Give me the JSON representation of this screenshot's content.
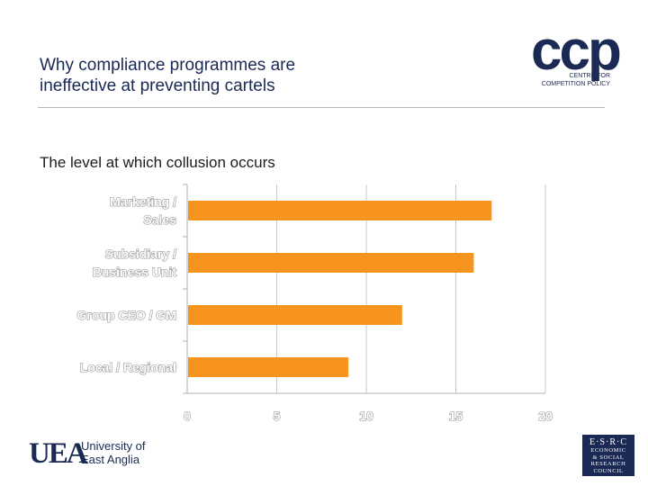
{
  "slide": {
    "title_line1": "Why compliance programmes are",
    "title_line2": "ineffective at preventing cartels",
    "subtitle": "The level at which collusion occurs"
  },
  "logos": {
    "ccp": {
      "mark": "ccp",
      "line1": "CENTRE FOR",
      "line2": "COMPETITION POLICY"
    },
    "uea": {
      "mark": "UEA",
      "line1": "University of",
      "line2": "East Anglia"
    },
    "esrc": {
      "top": "E·S·R·C",
      "line1": "ECONOMIC",
      "line2": "& SOCIAL",
      "line3": "RESEARCH",
      "line4": "COUNCIL"
    }
  },
  "colors": {
    "bar": "#f7941d",
    "grid": "#c8c8c8",
    "brand": "#1b2a55"
  },
  "chart_data": {
    "type": "bar",
    "orientation": "horizontal",
    "title": "The level at which collusion occurs",
    "categories": [
      [
        "Marketing /",
        "Sales"
      ],
      [
        "Subsidiary /",
        "Business Unit"
      ],
      [
        "Group CEO / GM"
      ],
      [
        "Local / Regional"
      ]
    ],
    "values": [
      17,
      16,
      12,
      9
    ],
    "xlim": [
      0,
      20
    ],
    "xticks": [
      0,
      5,
      10,
      15,
      20
    ],
    "grid": true,
    "xlabel": "",
    "ylabel": ""
  }
}
